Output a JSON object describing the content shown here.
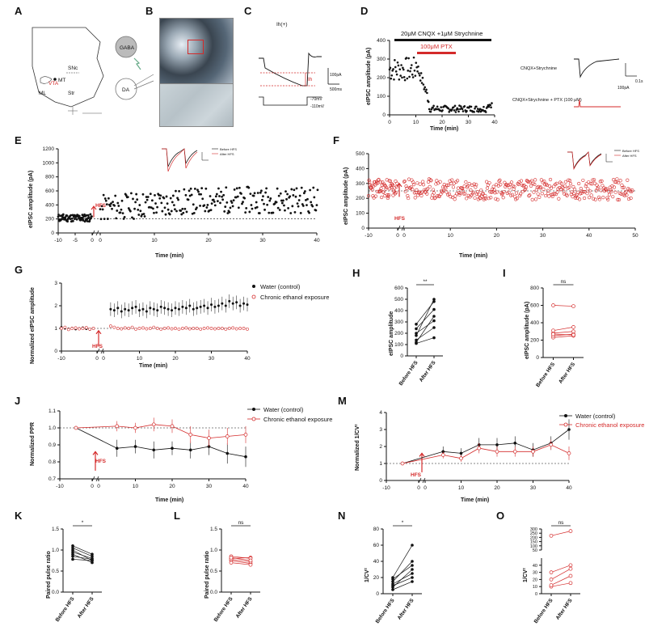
{
  "labels": {
    "A": "A",
    "B": "B",
    "C": "C",
    "D": "D",
    "E": "E",
    "F": "F",
    "G": "G",
    "H": "H",
    "I": "I",
    "J": "J",
    "K": "K",
    "L": "L",
    "M": "M",
    "N": "N",
    "O": "O"
  },
  "colors": {
    "control": "#111111",
    "ethanol": "#d42a2a",
    "frame": "#888888"
  },
  "icons": {
    "gaba_neuron": "circle-cell-icon",
    "da_neuron": "circle-cell-icon",
    "recording_electrode": "electrode-icon",
    "stim_electrode": "lightning-icon"
  },
  "panelA": {
    "labels": [
      "SNc",
      "MT",
      "VTA",
      "ML",
      "Str"
    ]
  },
  "panelB": {
    "gaba": "GABA",
    "da": "DA"
  },
  "panelC": {
    "title": "Ih(+)",
    "ih": "Ih",
    "vscale": "100pA",
    "tscale": "500ms",
    "v1": "-70mV",
    "v2": "-110mV"
  },
  "panelD": {
    "bar_black": "20μM CNQX +1μM Strychnine",
    "bar_red": "100μM PTX",
    "ylabel": "eIPSC amplitude (pA)",
    "xlabel": "Time (min)",
    "xticks": [
      "0",
      "10",
      "20",
      "30",
      "40"
    ],
    "yticks": [
      "0",
      "100",
      "200",
      "300",
      "400"
    ],
    "trace1": "CNQX+Strychnine",
    "trace2": "CNQX+Strychnine + PTX (100 μM)",
    "scale": "100pA",
    "tscale": "0.1s"
  },
  "panelE": {
    "ylabel": "eIPSC amplitude (pA)",
    "xlabel": "Time (min)",
    "hfs": "HFS",
    "yticks": [
      "0",
      "200",
      "400",
      "600",
      "800",
      "1000",
      "1200"
    ],
    "xticks": [
      "-10",
      "-5",
      "0",
      "0",
      "10",
      "20",
      "30",
      "40"
    ],
    "legend": [
      "Before HFS",
      "After HFS"
    ]
  },
  "panelF": {
    "ylabel": "eIPSC amplitude (pA)",
    "xlabel": "Time (min)",
    "hfs": "HFS",
    "yticks": [
      "0",
      "100",
      "200",
      "300",
      "400",
      "500"
    ],
    "xticks": [
      "-10",
      "0",
      "0",
      "10",
      "20",
      "30",
      "40",
      "50"
    ],
    "legend": [
      "Before HFS",
      "After HFS"
    ]
  },
  "panelG": {
    "ylabel": "Normalized eIPSC amplitude",
    "xlabel": "Time (min)",
    "hfs": "HFS",
    "yticks": [
      "0",
      "1",
      "2",
      "3"
    ],
    "xticks": [
      "-10",
      "0",
      "0",
      "10",
      "20",
      "30",
      "40"
    ],
    "legend": [
      "Water (control)",
      "Chronic ethanol exposure"
    ]
  },
  "panelH": {
    "ylabel": "eIPSC amplitude",
    "sig": "**",
    "yticks": [
      "0",
      "100",
      "200",
      "300",
      "400",
      "500",
      "600"
    ],
    "xticks": [
      "Before HFS",
      "After HFS"
    ]
  },
  "panelI": {
    "ylabel": "eIPSC amplitude (pA)",
    "sig": "ns",
    "yticks": [
      "0",
      "200",
      "400",
      "600",
      "800"
    ],
    "xticks": [
      "Before HFS",
      "After HFS"
    ]
  },
  "panelJ": {
    "ylabel": "Normalized PPR",
    "xlabel": "Time (min)",
    "hfs": "HFS",
    "yticks": [
      "0.7",
      "0.8",
      "0.9",
      "1.0",
      "1.1"
    ],
    "xticks": [
      "-10",
      "0",
      "0",
      "10",
      "20",
      "30",
      "40"
    ],
    "legend": [
      "Water (control)",
      "Chronic ethanol exposure"
    ]
  },
  "panelM": {
    "ylabel": "Normalized 1/CV²",
    "xlabel": "Time (min)",
    "hfs": "HFS",
    "yticks": [
      "0",
      "1",
      "2",
      "3",
      "4"
    ],
    "xticks": [
      "-10",
      "0",
      "0",
      "10",
      "20",
      "30",
      "40"
    ],
    "legend": [
      "Water (control)",
      "Chronic ethanol exposure"
    ]
  },
  "panelK": {
    "ylabel": "Paired pulse ratio",
    "sig": "*",
    "yticks": [
      "0.0",
      "0.5",
      "1.0",
      "1.5"
    ],
    "xticks": [
      "Before HFS",
      "After HFS"
    ]
  },
  "panelL": {
    "ylabel": "Paired pulse ratio",
    "sig": "ns",
    "yticks": [
      "0.0",
      "0.5",
      "1.0",
      "1.5"
    ],
    "xticks": [
      "Before HFS",
      "After HFS"
    ]
  },
  "panelN": {
    "ylabel": "1/CV²",
    "sig": "*",
    "yticks": [
      "0",
      "20",
      "40",
      "60",
      "80"
    ],
    "xticks": [
      "Before HFS",
      "After HFS"
    ]
  },
  "panelO": {
    "ylabel": "1/CV²",
    "sig": "ns",
    "yticks": [
      "0",
      "10",
      "20",
      "30",
      "40",
      "50",
      "100",
      "150",
      "200",
      "250",
      "300"
    ],
    "xticks": [
      "Before HFS",
      "After HFS"
    ]
  },
  "chart_data": [
    {
      "panel": "G",
      "type": "line",
      "x": [
        -10,
        -9,
        -8,
        -7,
        -6,
        -5,
        -4,
        -3,
        -2,
        -1,
        2,
        3,
        4,
        5,
        6,
        7,
        8,
        9,
        10,
        11,
        12,
        13,
        14,
        15,
        16,
        17,
        18,
        19,
        20,
        21,
        22,
        23,
        24,
        25,
        26,
        27,
        28,
        29,
        30,
        31,
        32,
        33,
        34,
        35,
        36,
        37,
        38,
        39,
        40
      ],
      "series": [
        {
          "name": "Water (control)",
          "values": [
            1.05,
            1.0,
            0.98,
            1.02,
            0.97,
            1.0,
            1.03,
            0.98,
            0.95,
            1.0,
            1.85,
            1.8,
            1.9,
            1.75,
            1.85,
            1.8,
            1.9,
            1.95,
            1.8,
            1.85,
            1.75,
            1.9,
            1.85,
            1.8,
            1.95,
            1.9,
            1.85,
            1.8,
            1.9,
            1.85,
            1.95,
            1.9,
            2.0,
            1.85,
            1.9,
            1.95,
            2.0,
            1.9,
            2.05,
            1.95,
            2.0,
            2.1,
            2.0,
            2.2,
            2.1,
            2.15,
            2.0,
            2.1,
            2.05
          ]
        },
        {
          "name": "Chronic ethanol exposure",
          "values": [
            1.0,
            1.05,
            0.95,
            1.0,
            1.02,
            0.98,
            1.0,
            1.03,
            0.97,
            1.0,
            1.1,
            1.05,
            1.0,
            0.98,
            1.02,
            1.0,
            1.05,
            0.97,
            1.0,
            1.02,
            0.98,
            1.0,
            1.05,
            1.0,
            0.97,
            1.0,
            1.02,
            0.98,
            1.0,
            0.97,
            1.0,
            1.02,
            0.98,
            1.0,
            1.0,
            0.97,
            1.0,
            1.02,
            1.0,
            0.98,
            1.0,
            1.0,
            0.97,
            1.0,
            1.02,
            0.98,
            1.0,
            1.0,
            0.97
          ]
        }
      ],
      "ylim": [
        0,
        3
      ]
    },
    {
      "panel": "J",
      "type": "line",
      "x": [
        -5,
        5,
        10,
        15,
        20,
        25,
        30,
        35,
        40
      ],
      "series": [
        {
          "name": "Water (control)",
          "values": [
            1.0,
            0.88,
            0.89,
            0.87,
            0.88,
            0.87,
            0.89,
            0.85,
            0.83
          ]
        },
        {
          "name": "Chronic ethanol exposure",
          "values": [
            1.0,
            1.01,
            1.0,
            1.02,
            1.01,
            0.96,
            0.94,
            0.95,
            0.96
          ]
        }
      ],
      "ylim": [
        0.7,
        1.1
      ]
    },
    {
      "panel": "M",
      "type": "line",
      "x": [
        -5,
        5,
        10,
        15,
        20,
        25,
        30,
        35,
        40
      ],
      "series": [
        {
          "name": "Water (control)",
          "values": [
            1.0,
            1.7,
            1.6,
            2.1,
            2.1,
            2.2,
            1.8,
            2.2,
            3.0
          ]
        },
        {
          "name": "Chronic ethanol exposure",
          "values": [
            1.0,
            1.5,
            1.3,
            1.9,
            1.7,
            1.7,
            1.7,
            2.1,
            1.6
          ]
        }
      ],
      "ylim": [
        0,
        4
      ]
    },
    {
      "panel": "H",
      "type": "line",
      "categories": [
        "Before HFS",
        "After HFS"
      ],
      "pairs": [
        [
          110,
          160
        ],
        [
          140,
          250
        ],
        [
          200,
          310
        ],
        [
          240,
          410
        ],
        [
          280,
          480
        ],
        [
          120,
          350
        ],
        [
          180,
          500
        ]
      ]
    },
    {
      "panel": "I",
      "type": "line",
      "categories": [
        "Before HFS",
        "After HFS"
      ],
      "pairs": [
        [
          600,
          590
        ],
        [
          230,
          250
        ],
        [
          250,
          270
        ],
        [
          280,
          300
        ],
        [
          310,
          350
        ],
        [
          270,
          260
        ]
      ]
    },
    {
      "panel": "K",
      "type": "line",
      "categories": [
        "Before HFS",
        "After HFS"
      ],
      "pairs": [
        [
          1.1,
          0.9
        ],
        [
          1.0,
          0.75
        ],
        [
          0.95,
          0.8
        ],
        [
          1.05,
          0.85
        ],
        [
          0.9,
          0.7
        ],
        [
          0.85,
          0.78
        ],
        [
          0.78,
          0.75
        ]
      ]
    },
    {
      "panel": "L",
      "type": "line",
      "categories": [
        "Before HFS",
        "After HFS"
      ],
      "pairs": [
        [
          0.8,
          0.82
        ],
        [
          0.75,
          0.68
        ],
        [
          0.7,
          0.65
        ],
        [
          0.85,
          0.8
        ],
        [
          0.78,
          0.72
        ],
        [
          0.82,
          0.75
        ]
      ]
    },
    {
      "panel": "N",
      "type": "line",
      "categories": [
        "Before HFS",
        "After HFS"
      ],
      "pairs": [
        [
          5,
          15
        ],
        [
          10,
          20
        ],
        [
          15,
          40
        ],
        [
          20,
          60
        ],
        [
          12,
          25
        ],
        [
          8,
          30
        ],
        [
          18,
          35
        ]
      ]
    },
    {
      "panel": "O",
      "type": "line",
      "categories": [
        "Before HFS",
        "After HFS"
      ],
      "pairs": [
        [
          220,
          275
        ],
        [
          30,
          40
        ],
        [
          20,
          35
        ],
        [
          10,
          15
        ],
        [
          12,
          25
        ]
      ]
    }
  ]
}
